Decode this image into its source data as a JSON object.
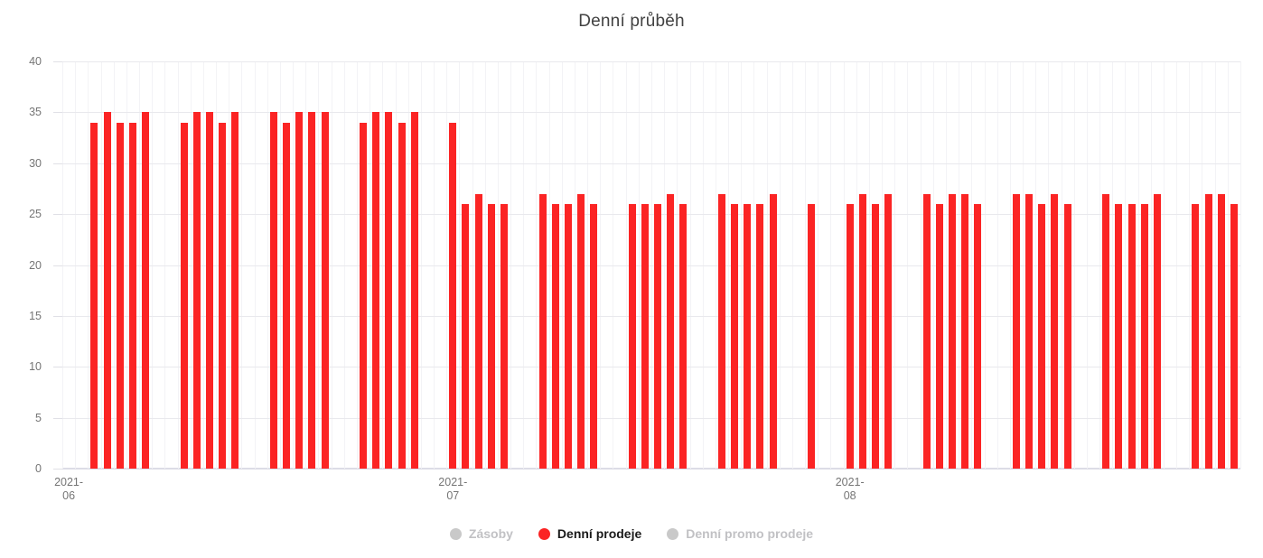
{
  "title": "Denní průběh",
  "colors": {
    "bar": "#fb2424",
    "title_text": "#424242",
    "axis_label": "#757575",
    "legend_active_text": "#1a1a1a",
    "legend_disabled_text": "#c1c1c4",
    "legend_disabled_dot": "#c9c9c9",
    "background": "#ffffff"
  },
  "legend": {
    "items": [
      {
        "label": "Zásoby",
        "active": false
      },
      {
        "label": "Denní prodeje",
        "active": true
      },
      {
        "label": "Denní promo prodeje",
        "active": false
      }
    ]
  },
  "chart_data": {
    "type": "bar",
    "title": "Denní průběh",
    "xlabel": "",
    "ylabel": "",
    "ylim": [
      0,
      40
    ],
    "y_ticks": [
      0,
      5,
      10,
      15,
      20,
      25,
      30,
      35,
      40
    ],
    "grid": true,
    "legend_position": "bottom",
    "total_slots": 92,
    "x_ticks": [
      {
        "slot": 0,
        "line1": "2021-",
        "line2": "06"
      },
      {
        "slot": 30,
        "line1": "2021-",
        "line2": "07"
      },
      {
        "slot": 61,
        "line1": "2021-",
        "line2": "08"
      }
    ],
    "series": [
      {
        "name": "Zásoby",
        "visible": false,
        "bars_slot_value": []
      },
      {
        "name": "Denní prodeje",
        "visible": true,
        "color": "#fb2424",
        "bars_slot_value": [
          [
            2,
            34
          ],
          [
            3,
            35
          ],
          [
            4,
            34
          ],
          [
            5,
            34
          ],
          [
            6,
            35
          ],
          [
            9,
            34
          ],
          [
            10,
            35
          ],
          [
            11,
            35
          ],
          [
            12,
            34
          ],
          [
            13,
            35
          ],
          [
            16,
            35
          ],
          [
            17,
            34
          ],
          [
            18,
            35
          ],
          [
            19,
            35
          ],
          [
            20,
            35
          ],
          [
            23,
            34
          ],
          [
            24,
            35
          ],
          [
            25,
            35
          ],
          [
            26,
            34
          ],
          [
            27,
            35
          ],
          [
            30,
            34
          ],
          [
            31,
            26
          ],
          [
            32,
            27
          ],
          [
            33,
            26
          ],
          [
            34,
            26
          ],
          [
            37,
            27
          ],
          [
            38,
            26
          ],
          [
            39,
            26
          ],
          [
            40,
            27
          ],
          [
            41,
            26
          ],
          [
            44,
            26
          ],
          [
            45,
            26
          ],
          [
            46,
            26
          ],
          [
            47,
            27
          ],
          [
            48,
            26
          ],
          [
            51,
            27
          ],
          [
            52,
            26
          ],
          [
            53,
            26
          ],
          [
            54,
            26
          ],
          [
            55,
            27
          ],
          [
            58,
            26
          ],
          [
            61,
            26
          ],
          [
            62,
            27
          ],
          [
            63,
            26
          ],
          [
            64,
            27
          ],
          [
            67,
            27
          ],
          [
            68,
            26
          ],
          [
            69,
            27
          ],
          [
            70,
            27
          ],
          [
            71,
            26
          ],
          [
            74,
            27
          ],
          [
            75,
            27
          ],
          [
            76,
            26
          ],
          [
            77,
            27
          ],
          [
            78,
            26
          ],
          [
            81,
            27
          ],
          [
            82,
            26
          ],
          [
            83,
            26
          ],
          [
            84,
            26
          ],
          [
            85,
            27
          ],
          [
            88,
            26
          ],
          [
            89,
            27
          ],
          [
            90,
            27
          ],
          [
            91,
            26
          ]
        ]
      },
      {
        "name": "Denní promo prodeje",
        "visible": false,
        "bars_slot_value": []
      }
    ]
  }
}
